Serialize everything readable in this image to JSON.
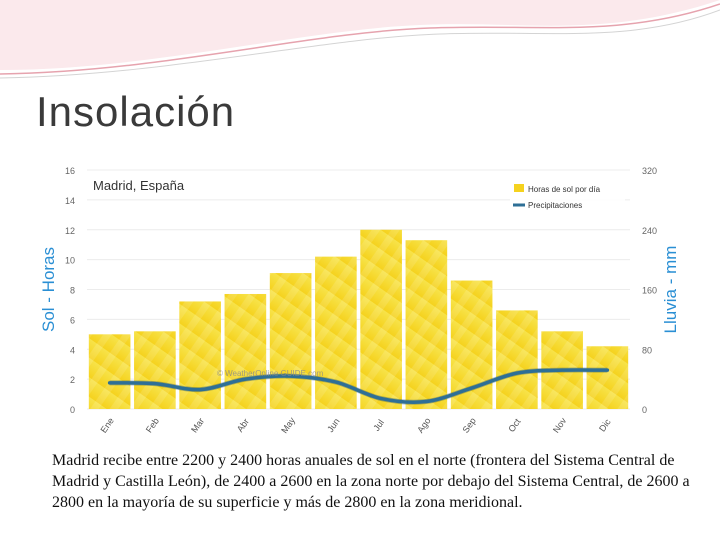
{
  "slide": {
    "title": "Insolación",
    "caption": "Madrid recibe entre 2200 y 2400 horas anuales de sol en el norte (frontera del Sistema Central de Madrid y Castilla León), de 2400 a 2600 en la zona norte por debajo del Sistema Central, de 2600 a 2800 en la mayoría de su superficie y más de 2800 en la zona meridional."
  },
  "colors": {
    "accent": "#ea8a9a",
    "bar": "#f5d21e",
    "line": "#2e6f96",
    "axis_label": "#2a8fd4"
  },
  "chart_data": {
    "type": "bar",
    "title": "Madrid, España",
    "categories": [
      "Ene",
      "Feb",
      "Mar",
      "Abr",
      "May",
      "Jun",
      "Jul",
      "Ago",
      "Sep",
      "Oct",
      "Nov",
      "Dic"
    ],
    "series": [
      {
        "name": "Horas de sol por día",
        "type": "bar",
        "axis": "left",
        "values": [
          5,
          5.2,
          7.2,
          7.7,
          9.1,
          10.2,
          12,
          11.3,
          8.6,
          6.6,
          5.2,
          4.2
        ]
      },
      {
        "name": "Precipitaciones",
        "type": "line",
        "axis": "right",
        "values": [
          35,
          34,
          26,
          40,
          44,
          36,
          14,
          10,
          28,
          48,
          52,
          52
        ]
      }
    ],
    "ylabel_left": "Sol - Horas",
    "ylabel_right": "Lluvia - mm",
    "ylim_left": [
      0,
      16
    ],
    "ylim_right": [
      0,
      320
    ],
    "yticks_left": [
      "0",
      "2",
      "4",
      "6",
      "8",
      "10",
      "12",
      "14",
      "16"
    ],
    "yticks_right": [
      "0",
      "80",
      "160",
      "240",
      "320"
    ],
    "watermark": "© WeatherOnline GUIDE.com"
  }
}
